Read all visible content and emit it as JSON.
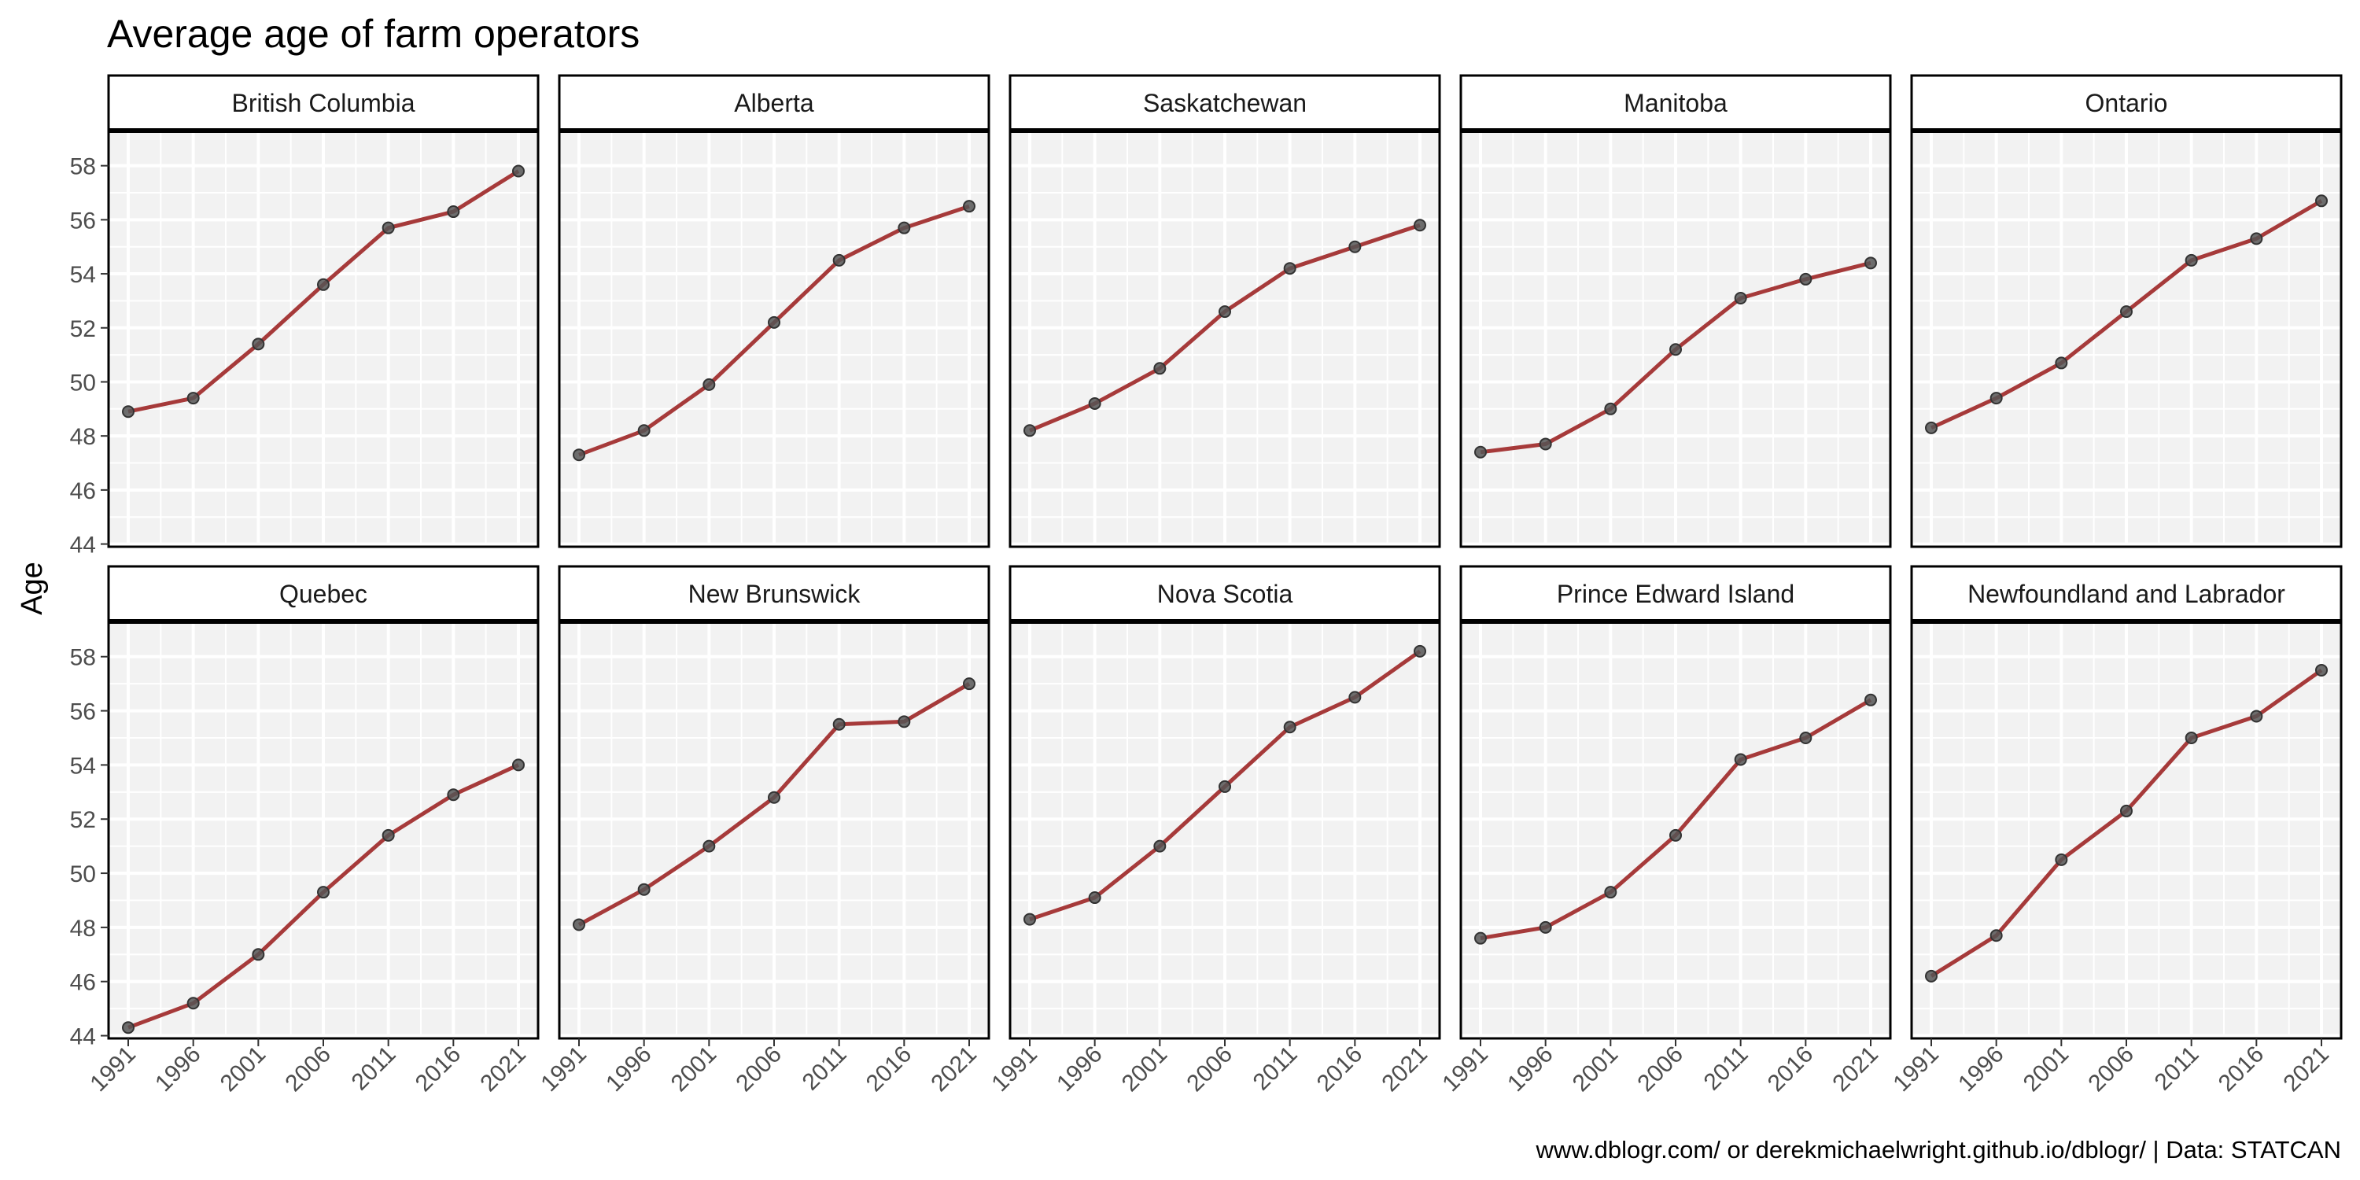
{
  "chart_data": {
    "type": "line",
    "title": "Average age of farm operators",
    "xlabel": "",
    "ylabel": "Age",
    "caption": "www.dblogr.com/ or derekmichaelwright.github.io/dblogr/ | Data: STATCAN",
    "x": [
      1991,
      1996,
      2001,
      2006,
      2011,
      2016,
      2021
    ],
    "x_tick_labels": [
      "1991",
      "1996",
      "2001",
      "2006",
      "2011",
      "2016",
      "2021"
    ],
    "y_tick_labels": [
      "44",
      "46",
      "48",
      "50",
      "52",
      "54",
      "56",
      "58"
    ],
    "ylim": [
      43.9,
      59.3
    ],
    "grid": true,
    "line_color": "#a63a3a",
    "point_color": "#555555",
    "panel_background": "#f2f2f2",
    "panels": [
      {
        "name": "British Columbia",
        "values": [
          48.9,
          49.4,
          51.4,
          53.6,
          55.7,
          56.3,
          57.8
        ]
      },
      {
        "name": "Alberta",
        "values": [
          47.3,
          48.2,
          49.9,
          52.2,
          54.5,
          55.7,
          56.5
        ]
      },
      {
        "name": "Saskatchewan",
        "values": [
          48.2,
          49.2,
          50.5,
          52.6,
          54.2,
          55.0,
          55.8
        ]
      },
      {
        "name": "Manitoba",
        "values": [
          47.4,
          47.7,
          49.0,
          51.2,
          53.1,
          53.8,
          54.4
        ]
      },
      {
        "name": "Ontario",
        "values": [
          48.3,
          49.4,
          50.7,
          52.6,
          54.5,
          55.3,
          56.7
        ]
      },
      {
        "name": "Quebec",
        "values": [
          44.3,
          45.2,
          47.0,
          49.3,
          51.4,
          52.9,
          54.0
        ]
      },
      {
        "name": "New Brunswick",
        "values": [
          48.1,
          49.4,
          51.0,
          52.8,
          55.5,
          55.6,
          57.0
        ]
      },
      {
        "name": "Nova Scotia",
        "values": [
          48.3,
          49.1,
          51.0,
          53.2,
          55.4,
          56.5,
          58.2
        ]
      },
      {
        "name": "Prince Edward Island",
        "values": [
          47.6,
          48.0,
          49.3,
          51.4,
          54.2,
          55.0,
          56.4
        ]
      },
      {
        "name": "Newfoundland and Labrador",
        "values": [
          46.2,
          47.7,
          50.5,
          52.3,
          55.0,
          55.8,
          57.5
        ]
      }
    ]
  }
}
